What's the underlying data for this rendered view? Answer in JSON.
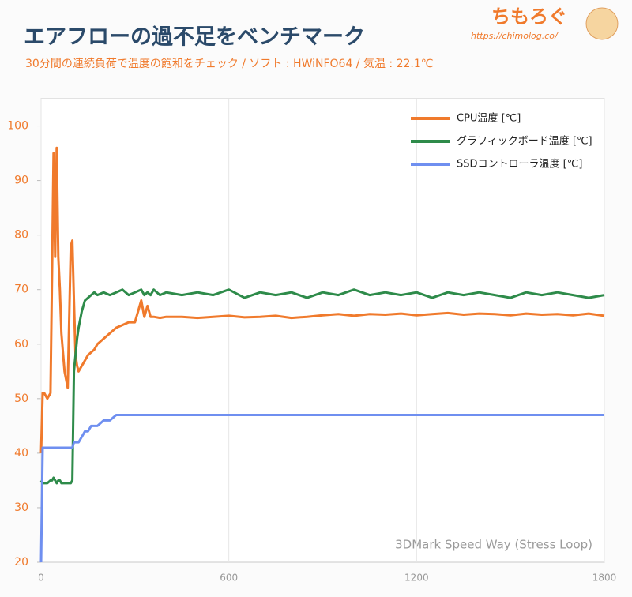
{
  "brand": {
    "name": "ちもろぐ",
    "url": "https://chimolog.co/"
  },
  "chart_data": {
    "type": "line",
    "title": "エアフローの過不足をベンチマーク",
    "subtitle": "30分間の連続負荷で温度の飽和をチェック / ソフト : HWiNFO64 / 気温 : 22.1℃",
    "annotation": "3DMark Speed Way (Stress Loop)",
    "x": [
      0,
      5,
      10,
      20,
      30,
      35,
      40,
      45,
      50,
      55,
      60,
      65,
      75,
      85,
      95,
      100,
      105,
      110,
      115,
      120,
      130,
      140,
      150,
      160,
      170,
      180,
      200,
      220,
      240,
      260,
      280,
      300,
      320,
      330,
      340,
      350,
      360,
      380,
      400,
      450,
      500,
      550,
      600,
      650,
      700,
      750,
      800,
      850,
      900,
      950,
      1000,
      1050,
      1100,
      1150,
      1200,
      1250,
      1300,
      1350,
      1400,
      1450,
      1500,
      1550,
      1600,
      1650,
      1700,
      1750,
      1800
    ],
    "series": [
      {
        "name": "CPU温度 [℃]",
        "color": "#f07a2c",
        "values": [
          40,
          51,
          51,
          50,
          51,
          73,
          95,
          76,
          96,
          76,
          70,
          62,
          55,
          52,
          78,
          79,
          68,
          58,
          56,
          55,
          56,
          57,
          58,
          58.5,
          59,
          60,
          61,
          62,
          63,
          63.5,
          64,
          64,
          68,
          65,
          67,
          65,
          65,
          64.8,
          65,
          65,
          64.8,
          65,
          65.2,
          64.9,
          65,
          65.2,
          64.8,
          65,
          65.3,
          65.5,
          65.2,
          65.5,
          65.4,
          65.6,
          65.3,
          65.5,
          65.7,
          65.4,
          65.6,
          65.5,
          65.3,
          65.6,
          65.4,
          65.5,
          65.3,
          65.6,
          65.2
        ]
      },
      {
        "name": "グラフィックボード温度 [℃]",
        "color": "#2e8b4a",
        "values": [
          35,
          34.5,
          34.5,
          34.5,
          35,
          35,
          35.5,
          35,
          34.5,
          35,
          35,
          34.5,
          34.5,
          34.5,
          34.5,
          35,
          55,
          58,
          61,
          63,
          66,
          68,
          68.5,
          69,
          69.5,
          69,
          69.5,
          69,
          69.5,
          70,
          69,
          69.5,
          70,
          69,
          69.5,
          69,
          70,
          69,
          69.5,
          69,
          69.5,
          69,
          70,
          68.5,
          69.5,
          69,
          69.5,
          68.5,
          69.5,
          69,
          70,
          69,
          69.5,
          69,
          69.5,
          68.5,
          69.5,
          69,
          69.5,
          69,
          68.5,
          69.5,
          69,
          69.5,
          69,
          68.5,
          69
        ]
      },
      {
        "name": "SSDコントローラ温度 [℃]",
        "color": "#6f8ff0",
        "values": [
          20,
          41,
          41,
          41,
          41,
          41,
          41,
          41,
          41,
          41,
          41,
          41,
          41,
          41,
          41,
          41,
          42,
          42,
          42,
          42,
          43,
          44,
          44,
          45,
          45,
          45,
          46,
          46,
          47,
          47,
          47,
          47,
          47,
          47,
          47,
          47,
          47,
          47,
          47,
          47,
          47,
          47,
          47,
          47,
          47,
          47,
          47,
          47,
          47,
          47,
          47,
          47,
          47,
          47,
          47,
          47,
          47,
          47,
          47,
          47,
          47,
          47,
          47,
          47,
          47,
          47,
          47
        ]
      }
    ],
    "xlim": [
      0,
      1800
    ],
    "xticks": [
      0,
      600,
      1200,
      1800
    ],
    "ylim": [
      20,
      105
    ],
    "yticks": [
      20,
      30,
      40,
      50,
      60,
      70,
      80,
      90,
      100
    ],
    "grid": true,
    "legend": "upper right"
  }
}
